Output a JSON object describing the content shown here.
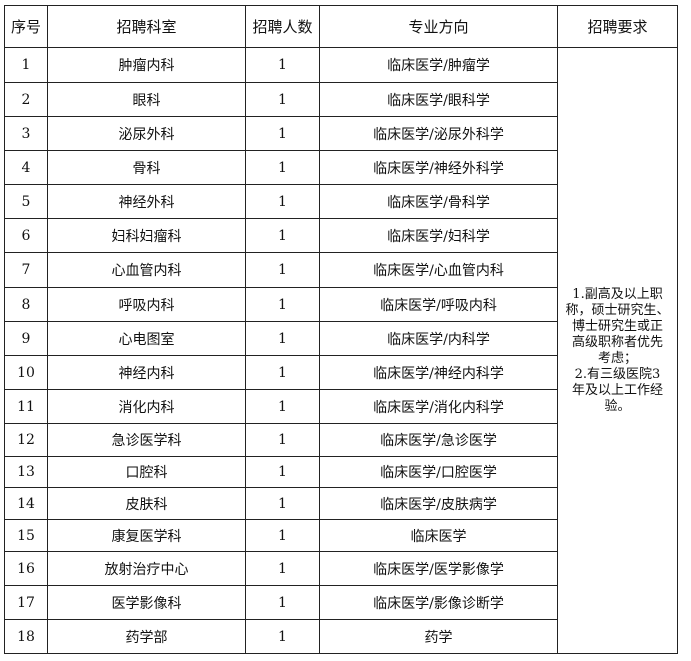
{
  "headers": [
    "序号",
    "招聘科室",
    "招聘人数",
    "专业方向",
    "招聘要求"
  ],
  "rows": [
    {
      "no": "1",
      "dept": "肿瘤内科",
      "count": "1",
      "major": "临床医学/肿瘤学"
    },
    {
      "no": "2",
      "dept": "眼科",
      "count": "1",
      "major": "临床医学/眼科学"
    },
    {
      "no": "3",
      "dept": "泌尿外科",
      "count": "1",
      "major": "临床医学/泌尿外科学"
    },
    {
      "no": "4",
      "dept": "骨科",
      "count": "1",
      "major": "临床医学/神经外科学"
    },
    {
      "no": "5",
      "dept": "神经外科",
      "count": "1",
      "major": "临床医学/骨科学"
    },
    {
      "no": "6",
      "dept": "妇科妇瘤科",
      "count": "1",
      "major": "临床医学/妇科学"
    },
    {
      "no": "7",
      "dept": "心血管内科",
      "count": "1",
      "major": "临床医学/心血管内科"
    },
    {
      "no": "8",
      "dept": "呼吸内科",
      "count": "1",
      "major": "临床医学/呼吸内科"
    },
    {
      "no": "9",
      "dept": "心电图室",
      "count": "1",
      "major": "临床医学/内科学"
    },
    {
      "no": "10",
      "dept": "神经内科",
      "count": "1",
      "major": "临床医学/神经内科学"
    },
    {
      "no": "11",
      "dept": "消化内科",
      "count": "1",
      "major": "临床医学/消化内科学"
    },
    {
      "no": "12",
      "dept": "急诊医学科",
      "count": "1",
      "major": "临床医学/急诊医学"
    },
    {
      "no": "13",
      "dept": "口腔科",
      "count": "1",
      "major": "临床医学/口腔医学"
    },
    {
      "no": "14",
      "dept": "皮肤科",
      "count": "1",
      "major": "临床医学/皮肤病学"
    },
    {
      "no": "15",
      "dept": "康复医学科",
      "count": "1",
      "major": "临床医学"
    },
    {
      "no": "16",
      "dept": "放射治疗中心",
      "count": "1",
      "major": "临床医学/医学影像学"
    },
    {
      "no": "17",
      "dept": "医学影像科",
      "count": "1",
      "major": "临床医学/影像诊断学"
    },
    {
      "no": "18",
      "dept": "药学部",
      "count": "1",
      "major": "药学"
    }
  ],
  "requirements": "1.副高及以上职\n称，硕士研究生、\n博士研究生或正\n高级职称者优先\n考虑；\n2.有三级医院3\n年及以上工作经\n验。"
}
